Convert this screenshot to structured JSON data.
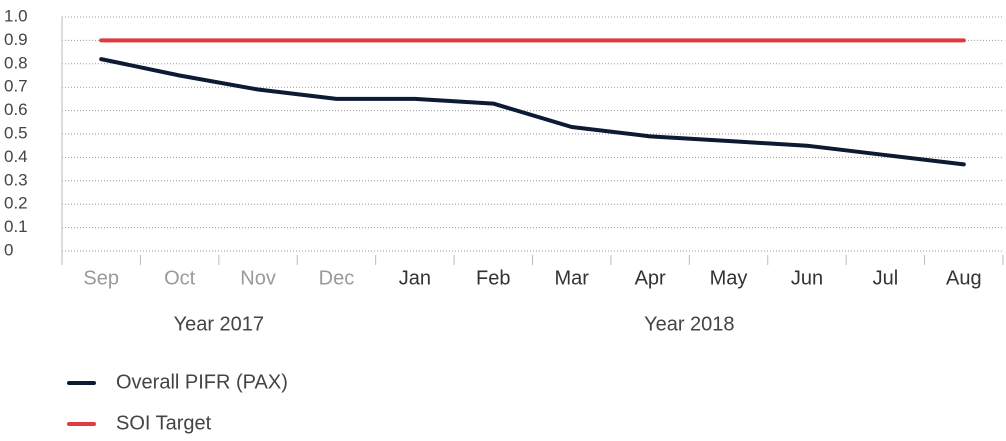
{
  "chart_data": {
    "type": "line",
    "categories": [
      "Sep",
      "Oct",
      "Nov",
      "Dec",
      "Jan",
      "Feb",
      "Mar",
      "Apr",
      "May",
      "Jun",
      "Jul",
      "Aug"
    ],
    "groups": [
      {
        "label": "Year 2017",
        "count": 4,
        "color": "#9a9a9a"
      },
      {
        "label": "Year 2018",
        "count": 8,
        "color": "#333333"
      }
    ],
    "series": [
      {
        "name": "Overall PIFR (PAX)",
        "color": "#0d1a33",
        "values": [
          0.82,
          0.75,
          0.69,
          0.65,
          0.65,
          0.63,
          0.53,
          0.49,
          0.47,
          0.45,
          0.41,
          0.37
        ]
      },
      {
        "name": "SOI Target",
        "color": "#e0393e",
        "values": [
          0.9,
          0.9,
          0.9,
          0.9,
          0.9,
          0.9,
          0.9,
          0.9,
          0.9,
          0.9,
          0.9,
          0.9
        ]
      }
    ],
    "ylim": [
      0,
      1
    ],
    "yticks": [
      0,
      0.1,
      0.2,
      0.3,
      0.4,
      0.5,
      0.6,
      0.7,
      0.8,
      0.9,
      {
        "value": 1,
        "label": "1.0"
      }
    ],
    "grid": true,
    "legend": "bottom-left"
  }
}
